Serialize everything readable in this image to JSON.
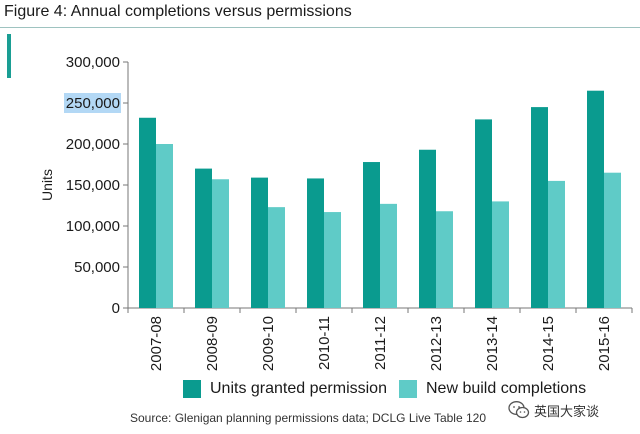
{
  "figure": {
    "title": "Figure 4: Annual completions versus permissions"
  },
  "source_text": "Source: Glenigan planning permissions data; DCLG Live Table 120",
  "watermark": {
    "text": "英国大家谈",
    "icon": "wechat-icon"
  },
  "colors": {
    "permission": "#0a9b8f",
    "completions": "#5fcbc7",
    "highlight": "#b3d8f5",
    "axis": "#777777",
    "title_rule": "#9ec3c0"
  },
  "chart_data": {
    "type": "bar",
    "title": "",
    "ylabel": "Units",
    "xlabel": "",
    "ylim": [
      0,
      300000
    ],
    "yticks": [
      0,
      50000,
      100000,
      150000,
      200000,
      250000,
      300000
    ],
    "ytick_labels": [
      "0",
      "50,000",
      "100,000",
      "150,000",
      "200,000",
      "250,000",
      "300,000"
    ],
    "highlighted_tick": "250,000",
    "grid": false,
    "legend_position": "bottom",
    "categories": [
      "2007-08",
      "2008-09",
      "2009-10",
      "2010-11",
      "2011-12",
      "2012-13",
      "2013-14",
      "2014-15",
      "2015-16"
    ],
    "series": [
      {
        "name": "Units granted permission",
        "values": [
          232000,
          170000,
          159000,
          158000,
          178000,
          193000,
          230000,
          245000,
          265000
        ]
      },
      {
        "name": "New build completions",
        "values": [
          200000,
          157000,
          123000,
          117000,
          127000,
          118000,
          130000,
          155000,
          165000
        ]
      }
    ]
  }
}
